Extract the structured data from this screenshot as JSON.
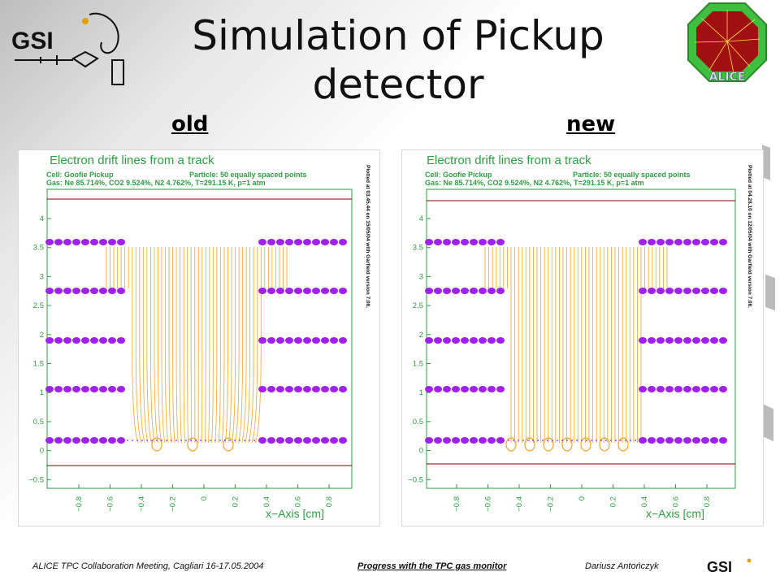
{
  "slide": {
    "title": "Simulation of Pickup detector",
    "label_old": "old",
    "label_new": "new"
  },
  "logos": {
    "left": "GSI",
    "right": "ALICE",
    "footer": "GSI"
  },
  "plots": [
    {
      "title": "Electron drift lines from a track",
      "cell_info": "Cell: Goofie Pickup",
      "particle_info": "Particle: 50 equally spaced points",
      "gas_info": "Gas: Ne 85.714%, CO2 9.524%, N2 4.762%, T=291.15 K, p=1 atm",
      "side_note": "Plotted at 03.45.44 on 15/05/04 with Garfield version 7.08.",
      "x_axis_label": "x−Axis [cm]"
    },
    {
      "title": "Electron drift lines from a track",
      "cell_info": "Cell: Goofie Pickup",
      "particle_info": "Particle: 50 equally spaced points",
      "gas_info": "Gas: Ne 85.714%, CO2 9.524%, N2 4.762%, T=291.15 K, p=1 atm",
      "side_note": "Plotted at 04.28.10 on 12/05/04 with Garfield version 7.08.",
      "x_axis_label": "x−Axis [cm]"
    }
  ],
  "axis": {
    "y_ticks": [
      "4",
      "3.5",
      "3",
      "2.5",
      "2",
      "1.5",
      "1",
      "0.5",
      "0",
      "−0.5"
    ],
    "x_ticks": [
      "−0.8",
      "−0.6",
      "−0.4",
      "−0.2",
      "0",
      "0.2",
      "0.4",
      "0.6",
      "0.8"
    ]
  },
  "colors": {
    "drift_lines": "#f5a623",
    "wires": "#a020f0",
    "axis_text": "#2e9e41",
    "boundary": "#8b0000"
  },
  "footer": {
    "left": "ALICE TPC Collaboration Meeting, Cagliari 16-17.05.2004",
    "center": "Progress with the TPC gas monitor",
    "right": "Dariusz Antończyk"
  }
}
